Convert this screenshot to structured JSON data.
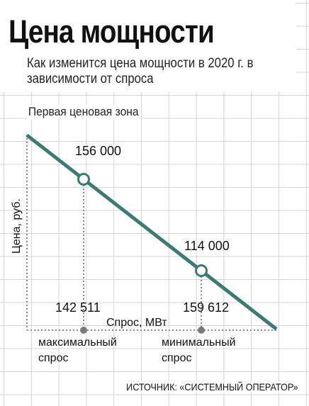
{
  "header": {
    "title": "Цена мощности",
    "subtitle": "Как изменится цена мощности в 2020 г. в зависимости от спроса"
  },
  "zone_label": "Первая ценовая зона",
  "source": "ИСТОЧНИК: «СИСТЕМНЫЙ ОПЕРАТОР»",
  "colors": {
    "line": "#3e7a73",
    "dotted": "#8a8a8a",
    "marker": "#7a7a7a"
  },
  "chart_data": {
    "type": "line",
    "xlabel": "Спрос, МВт",
    "ylabel": "Цена, руб.",
    "points": [
      {
        "x": 142511,
        "y": 156000,
        "value_label": "156 000",
        "x_label": "142 511",
        "caption": "максимальный спрос"
      },
      {
        "x": 159612,
        "y": 114000,
        "value_label": "114 000",
        "x_label": "159 612",
        "caption": "минимальный спрос"
      }
    ]
  }
}
